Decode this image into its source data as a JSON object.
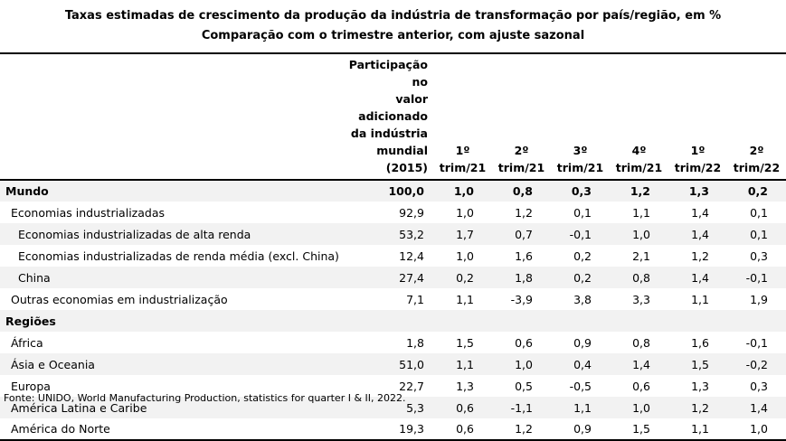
{
  "title_line1": "Taxas estimadas de crescimento da produção da indústria de transformação por país/região, em %",
  "title_line2": "Comparação com o trimestre anterior, com ajuste sazonal",
  "header": {
    "share": [
      "Participação no",
      "valor adicionado",
      "da indústria",
      "mundial (2015)"
    ],
    "periods": [
      [
        "1º",
        "trim/21"
      ],
      [
        "2º",
        "trim/21"
      ],
      [
        "3º",
        "trim/21"
      ],
      [
        "4º",
        "trim/21"
      ],
      [
        "1º",
        "trim/22"
      ],
      [
        "2º",
        "trim/22"
      ]
    ]
  },
  "rows": [
    {
      "label": "Mundo",
      "share": "100,0",
      "values": [
        "1,0",
        "0,8",
        "0,3",
        "1,2",
        "1,3",
        "0,2"
      ]
    },
    {
      "label": "Economias industrializadas",
      "share": "92,9",
      "values": [
        "1,0",
        "1,2",
        "0,1",
        "1,1",
        "1,4",
        "0,1"
      ]
    },
    {
      "label": "Economias industrializadas de alta renda",
      "share": "53,2",
      "values": [
        "1,7",
        "0,7",
        "-0,1",
        "1,0",
        "1,4",
        "0,1"
      ]
    },
    {
      "label": "Economias industrializadas de renda média (excl. China)",
      "share": "12,4",
      "values": [
        "1,0",
        "1,6",
        "0,2",
        "2,1",
        "1,2",
        "0,3"
      ]
    },
    {
      "label": "China",
      "share": "27,4",
      "values": [
        "0,2",
        "1,8",
        "0,2",
        "0,8",
        "1,4",
        "-0,1"
      ]
    },
    {
      "label": "Outras economias em industrialização",
      "share": "7,1",
      "values": [
        "1,1",
        "-3,9",
        "3,8",
        "3,3",
        "1,1",
        "1,9"
      ]
    },
    {
      "label": "Regiões",
      "share": "",
      "values": [
        "",
        "",
        "",
        "",
        "",
        ""
      ]
    },
    {
      "label": "África",
      "share": "1,8",
      "values": [
        "1,5",
        "0,6",
        "0,9",
        "0,8",
        "1,6",
        "-0,1"
      ]
    },
    {
      "label": "Ásia e Oceania",
      "share": "51,0",
      "values": [
        "1,1",
        "1,0",
        "0,4",
        "1,4",
        "1,5",
        "-0,2"
      ]
    },
    {
      "label": "Europa",
      "share": "22,7",
      "values": [
        "1,3",
        "0,5",
        "-0,5",
        "0,6",
        "1,3",
        "0,3"
      ]
    },
    {
      "label": "América Latina e Caribe",
      "share": "5,3",
      "values": [
        "0,6",
        "-1,1",
        "1,1",
        "1,0",
        "1,2",
        "1,4"
      ]
    },
    {
      "label": "América do Norte",
      "share": "19,3",
      "values": [
        "0,6",
        "1,2",
        "0,9",
        "1,5",
        "1,1",
        "1,0"
      ]
    }
  ],
  "source": "Fonte: UNIDO, World Manufacturing Production, statistics for quarter I & II, 2022."
}
